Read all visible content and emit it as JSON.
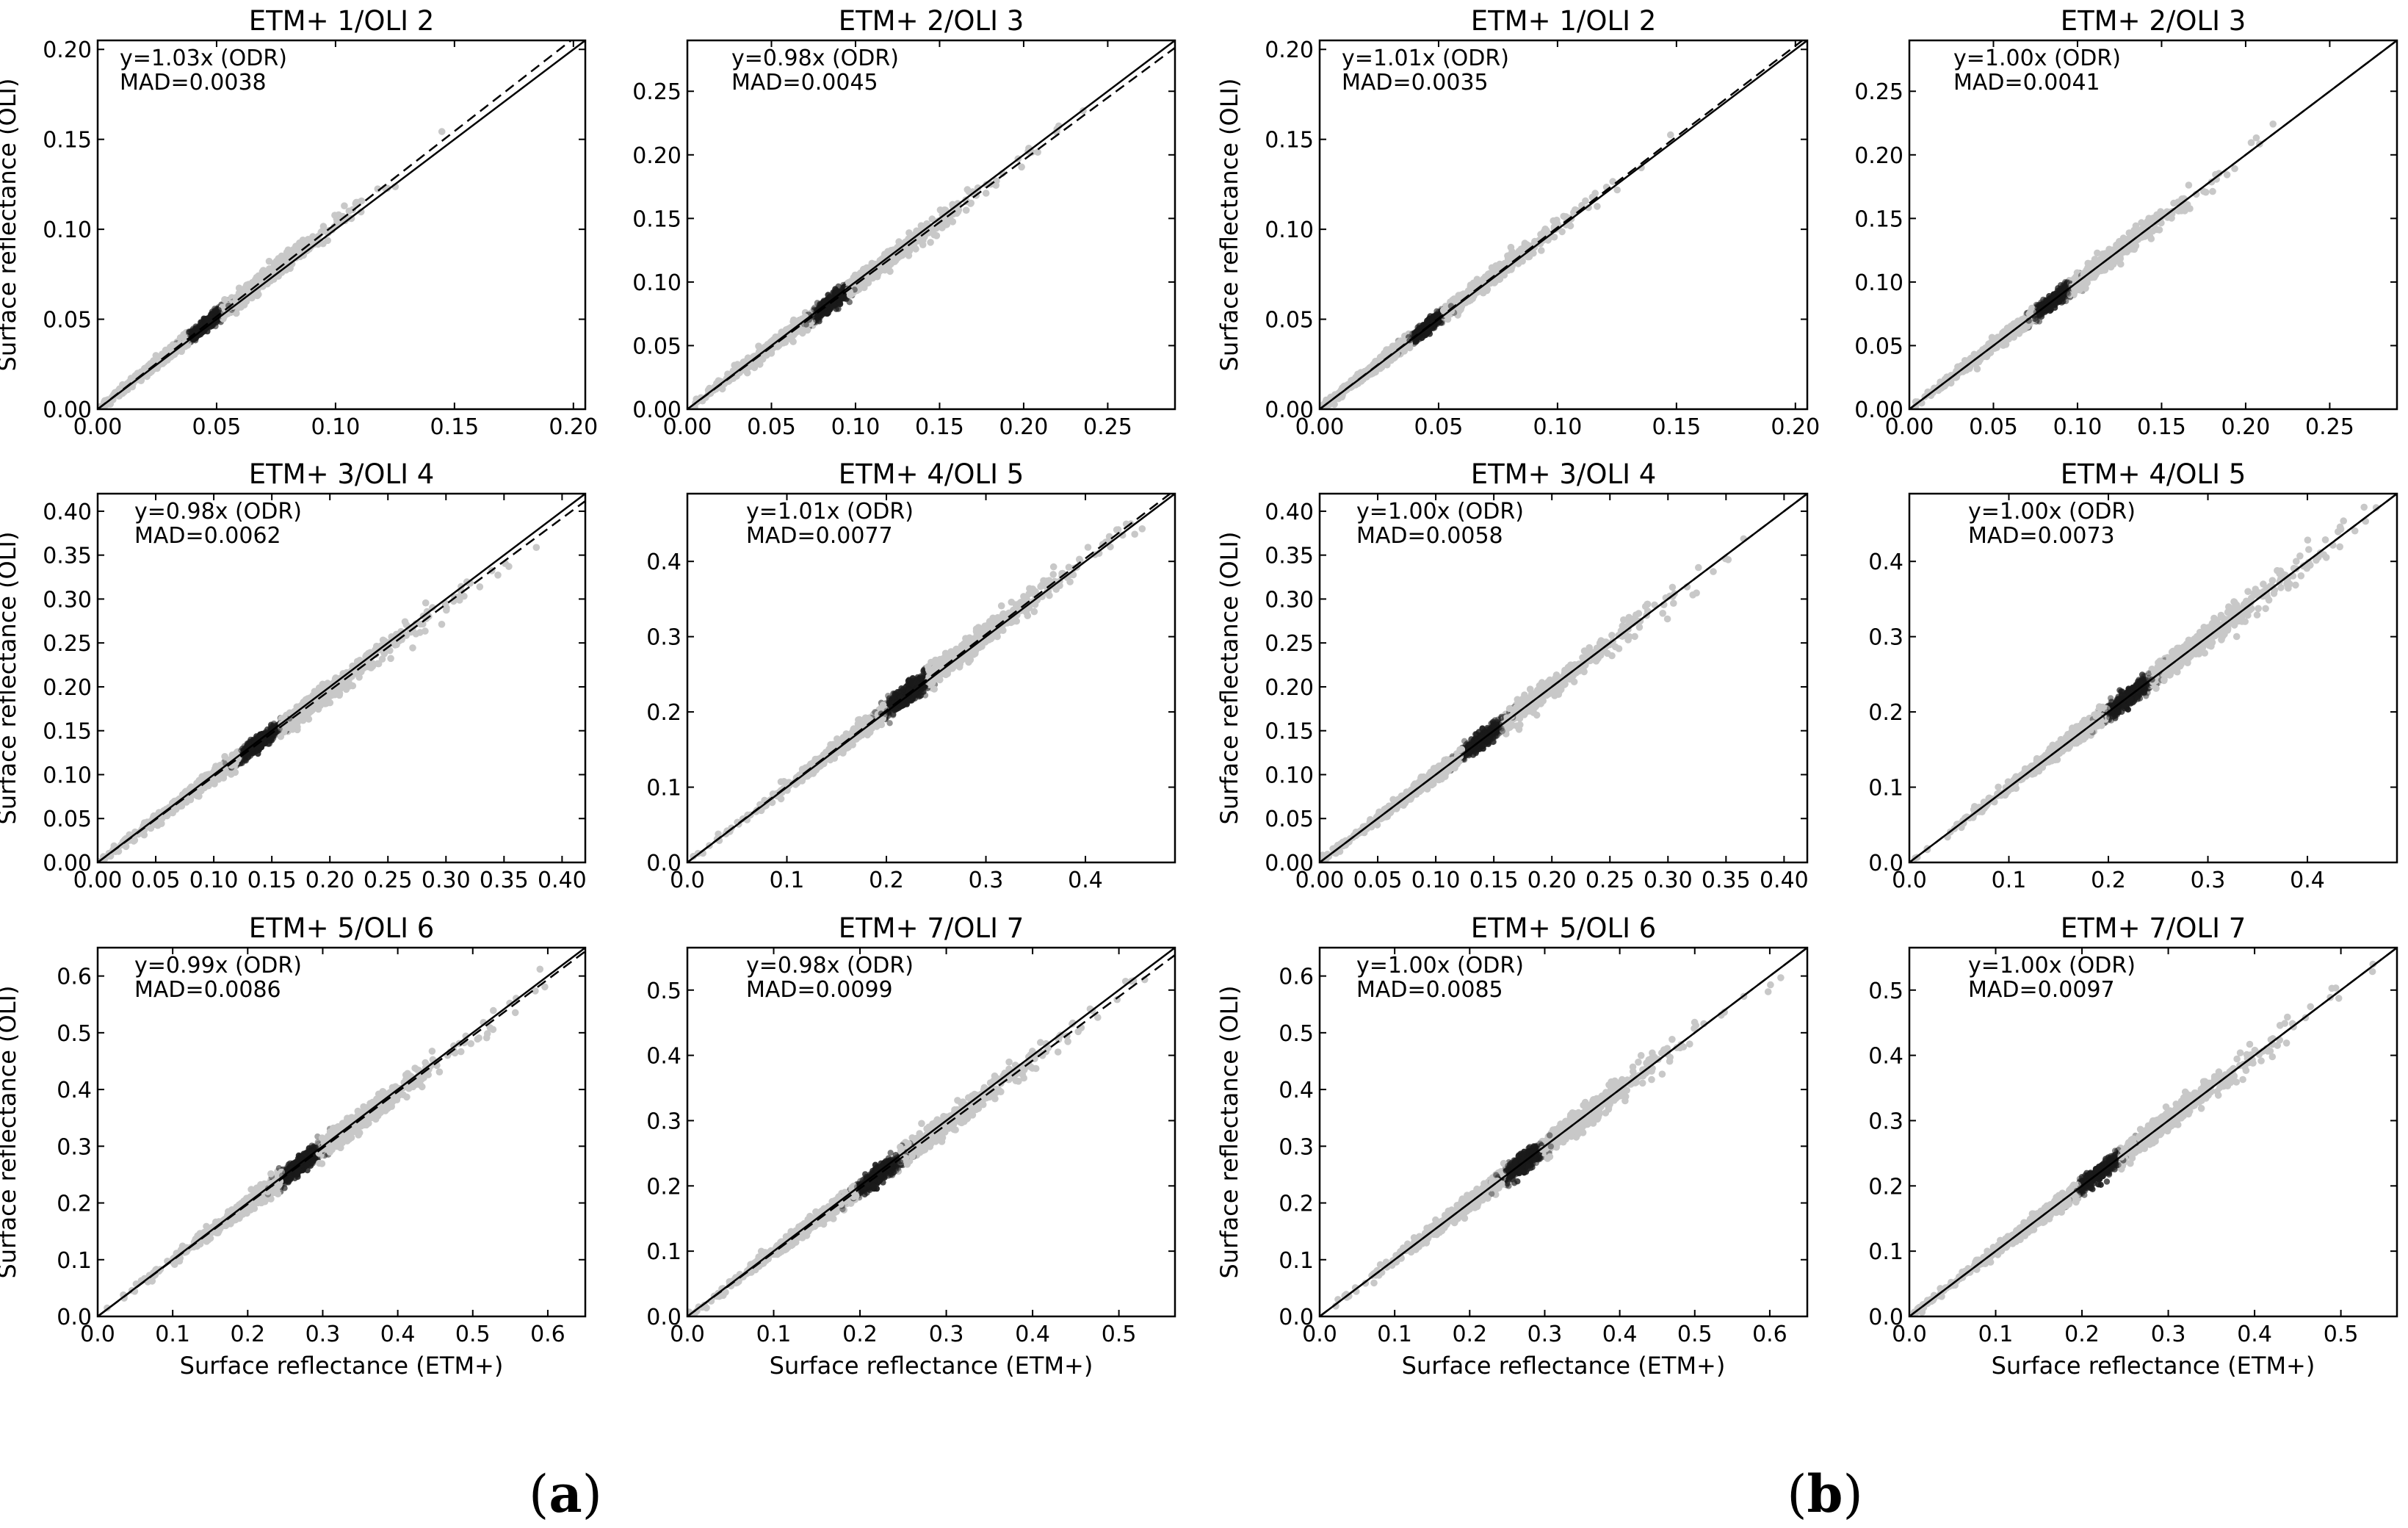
{
  "panel_labels": [
    {
      "open": "(",
      "letter": "a",
      "close": ")"
    },
    {
      "open": "(",
      "letter": "b",
      "close": ")"
    }
  ],
  "x_axis_label": "Surface reflectance (ETM+)",
  "y_axis_label": "Surface reflectance (OLI)",
  "colors": {
    "points_light": "#c8c8c8",
    "points_dense": "#1a1a1a",
    "lines": "#000000"
  },
  "chart_data": [
    {
      "panel": "a",
      "type": "scatter",
      "title": "ETM+ 1/OLI 2",
      "lim": [
        0,
        0.205
      ],
      "ticks": [
        0,
        0.05,
        0.1,
        0.15,
        0.2
      ],
      "tick_labels": [
        "0.00",
        "0.05",
        "0.10",
        "0.15",
        "0.20"
      ],
      "fit_slope": 1.03,
      "fit_label": "y=1.03x (ODR)",
      "mad_label": "MAD=0.0038",
      "center": 0.045,
      "spread": 0.02
    },
    {
      "panel": "a",
      "type": "scatter",
      "title": "ETM+ 2/OLI 3",
      "lim": [
        0,
        0.29
      ],
      "ticks": [
        0,
        0.05,
        0.1,
        0.15,
        0.2,
        0.25
      ],
      "tick_labels": [
        "0.00",
        "0.05",
        "0.10",
        "0.15",
        "0.20",
        "0.25"
      ],
      "fit_slope": 0.98,
      "fit_label": "y=0.98x (ODR)",
      "mad_label": "MAD=0.0045",
      "center": 0.085,
      "spread": 0.03
    },
    {
      "panel": "b",
      "type": "scatter",
      "title": "ETM+ 1/OLI 2",
      "lim": [
        0,
        0.205
      ],
      "ticks": [
        0,
        0.05,
        0.1,
        0.15,
        0.2
      ],
      "tick_labels": [
        "0.00",
        "0.05",
        "0.10",
        "0.15",
        "0.20"
      ],
      "fit_slope": 1.01,
      "fit_label": "y=1.01x (ODR)",
      "mad_label": "MAD=0.0035",
      "center": 0.045,
      "spread": 0.02
    },
    {
      "panel": "b",
      "type": "scatter",
      "title": "ETM+ 2/OLI 3",
      "lim": [
        0,
        0.29
      ],
      "ticks": [
        0,
        0.05,
        0.1,
        0.15,
        0.2,
        0.25
      ],
      "tick_labels": [
        "0.00",
        "0.05",
        "0.10",
        "0.15",
        "0.20",
        "0.25"
      ],
      "fit_slope": 1.0,
      "fit_label": "y=1.00x (ODR)",
      "mad_label": "MAD=0.0041",
      "center": 0.085,
      "spread": 0.03
    },
    {
      "panel": "a",
      "type": "scatter",
      "title": "ETM+ 3/OLI 4",
      "lim": [
        0,
        0.42
      ],
      "ticks": [
        0,
        0.05,
        0.1,
        0.15,
        0.2,
        0.25,
        0.3,
        0.35,
        0.4
      ],
      "tick_labels": [
        "0.00",
        "0.05",
        "0.10",
        "0.15",
        "0.20",
        "0.25",
        "0.30",
        "0.35",
        "0.40"
      ],
      "fit_slope": 0.98,
      "fit_label": "y=0.98x (ODR)",
      "mad_label": "MAD=0.0062",
      "center": 0.14,
      "spread": 0.05
    },
    {
      "panel": "a",
      "type": "scatter",
      "title": "ETM+ 4/OLI 5",
      "lim": [
        0,
        0.49
      ],
      "ticks": [
        0,
        0.1,
        0.2,
        0.3,
        0.4
      ],
      "tick_labels": [
        "0.0",
        "0.1",
        "0.2",
        "0.3",
        "0.4"
      ],
      "fit_slope": 1.01,
      "fit_label": "y=1.01x (ODR)",
      "mad_label": "MAD=0.0077",
      "center": 0.22,
      "spread": 0.06
    },
    {
      "panel": "b",
      "type": "scatter",
      "title": "ETM+ 3/OLI 4",
      "lim": [
        0,
        0.42
      ],
      "ticks": [
        0,
        0.05,
        0.1,
        0.15,
        0.2,
        0.25,
        0.3,
        0.35,
        0.4
      ],
      "tick_labels": [
        "0.00",
        "0.05",
        "0.10",
        "0.15",
        "0.20",
        "0.25",
        "0.30",
        "0.35",
        "0.40"
      ],
      "fit_slope": 1.0,
      "fit_label": "y=1.00x (ODR)",
      "mad_label": "MAD=0.0058",
      "center": 0.14,
      "spread": 0.05
    },
    {
      "panel": "b",
      "type": "scatter",
      "title": "ETM+ 4/OLI 5",
      "lim": [
        0,
        0.49
      ],
      "ticks": [
        0,
        0.1,
        0.2,
        0.3,
        0.4
      ],
      "tick_labels": [
        "0.0",
        "0.1",
        "0.2",
        "0.3",
        "0.4"
      ],
      "fit_slope": 1.0,
      "fit_label": "y=1.00x (ODR)",
      "mad_label": "MAD=0.0073",
      "center": 0.22,
      "spread": 0.06
    },
    {
      "panel": "a",
      "type": "scatter",
      "title": "ETM+ 5/OLI 6",
      "lim": [
        0,
        0.65
      ],
      "ticks": [
        0,
        0.1,
        0.2,
        0.3,
        0.4,
        0.5,
        0.6
      ],
      "tick_labels": [
        "0.0",
        "0.1",
        "0.2",
        "0.3",
        "0.4",
        "0.5",
        "0.6"
      ],
      "fit_slope": 0.99,
      "fit_label": "y=0.99x (ODR)",
      "mad_label": "MAD=0.0086",
      "center": 0.27,
      "spread": 0.07
    },
    {
      "panel": "a",
      "type": "scatter",
      "title": "ETM+ 7/OLI 7",
      "lim": [
        0,
        0.565
      ],
      "ticks": [
        0,
        0.1,
        0.2,
        0.3,
        0.4,
        0.5
      ],
      "tick_labels": [
        "0.0",
        "0.1",
        "0.2",
        "0.3",
        "0.4",
        "0.5"
      ],
      "fit_slope": 0.98,
      "fit_label": "y=0.98x (ODR)",
      "mad_label": "MAD=0.0099",
      "center": 0.22,
      "spread": 0.07
    },
    {
      "panel": "b",
      "type": "scatter",
      "title": "ETM+ 5/OLI 6",
      "lim": [
        0,
        0.65
      ],
      "ticks": [
        0,
        0.1,
        0.2,
        0.3,
        0.4,
        0.5,
        0.6
      ],
      "tick_labels": [
        "0.0",
        "0.1",
        "0.2",
        "0.3",
        "0.4",
        "0.5",
        "0.6"
      ],
      "fit_slope": 1.0,
      "fit_label": "y=1.00x (ODR)",
      "mad_label": "MAD=0.0085",
      "center": 0.27,
      "spread": 0.07
    },
    {
      "panel": "b",
      "type": "scatter",
      "title": "ETM+ 7/OLI 7",
      "lim": [
        0,
        0.565
      ],
      "ticks": [
        0,
        0.1,
        0.2,
        0.3,
        0.4,
        0.5
      ],
      "tick_labels": [
        "0.0",
        "0.1",
        "0.2",
        "0.3",
        "0.4",
        "0.5"
      ],
      "fit_slope": 1.0,
      "fit_label": "y=1.00x (ODR)",
      "mad_label": "MAD=0.0097",
      "center": 0.22,
      "spread": 0.07
    }
  ]
}
